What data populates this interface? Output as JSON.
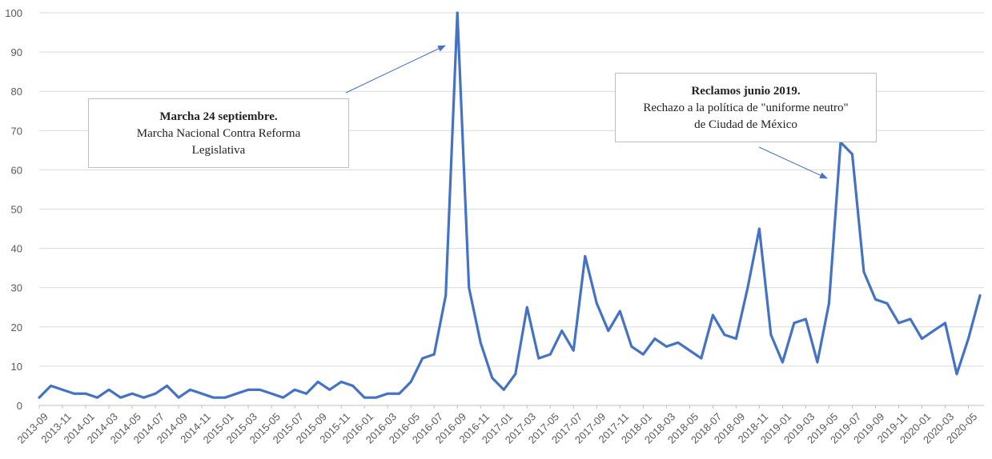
{
  "chart_data": {
    "type": "line",
    "title": "",
    "xlabel": "",
    "ylabel": "",
    "ylim": [
      0,
      100
    ],
    "yticks": [
      0,
      10,
      20,
      30,
      40,
      50,
      60,
      70,
      80,
      90,
      100
    ],
    "grid": true,
    "series_color": "#4472c4",
    "x": [
      "2013-09",
      "2013-10",
      "2013-11",
      "2013-12",
      "2014-01",
      "2014-02",
      "2014-03",
      "2014-04",
      "2014-05",
      "2014-06",
      "2014-07",
      "2014-08",
      "2014-09",
      "2014-10",
      "2014-11",
      "2014-12",
      "2015-01",
      "2015-02",
      "2015-03",
      "2015-04",
      "2015-05",
      "2015-06",
      "2015-07",
      "2015-08",
      "2015-09",
      "2015-10",
      "2015-11",
      "2015-12",
      "2016-01",
      "2016-02",
      "2016-03",
      "2016-04",
      "2016-05",
      "2016-06",
      "2016-07",
      "2016-08",
      "2016-09",
      "2016-10",
      "2016-11",
      "2016-12",
      "2017-01",
      "2017-02",
      "2017-03",
      "2017-04",
      "2017-05",
      "2017-06",
      "2017-07",
      "2017-08",
      "2017-09",
      "2017-10",
      "2017-11",
      "2017-12",
      "2018-01",
      "2018-02",
      "2018-03",
      "2018-04",
      "2018-05",
      "2018-06",
      "2018-07",
      "2018-08",
      "2018-09",
      "2018-10",
      "2018-11",
      "2018-12",
      "2019-01",
      "2019-02",
      "2019-03",
      "2019-04",
      "2019-05",
      "2019-06",
      "2019-07",
      "2019-08",
      "2019-09",
      "2019-10",
      "2019-11",
      "2019-12",
      "2020-01",
      "2020-02",
      "2020-03",
      "2020-04",
      "2020-05",
      "2020-06"
    ],
    "xtick_labels": [
      "2013-09",
      "2013-11",
      "2014-01",
      "2014-03",
      "2014-05",
      "2014-07",
      "2014-09",
      "2014-11",
      "2015-01",
      "2015-03",
      "2015-05",
      "2015-07",
      "2015-09",
      "2015-11",
      "2016-01",
      "2016-03",
      "2016-05",
      "2016-07",
      "2016-09",
      "2016-11",
      "2017-01",
      "2017-03",
      "2017-05",
      "2017-07",
      "2017-09",
      "2017-11",
      "2018-01",
      "2018-03",
      "2018-05",
      "2018-07",
      "2018-09",
      "2018-11",
      "2019-01",
      "2019-03",
      "2019-05",
      "2019-07",
      "2019-09",
      "2019-11",
      "2020-01",
      "2020-03",
      "2020-05"
    ],
    "series": [
      {
        "values": [
          2,
          5,
          4,
          3,
          3,
          2,
          4,
          2,
          3,
          2,
          3,
          5,
          2,
          4,
          3,
          2,
          2,
          3,
          4,
          4,
          3,
          2,
          4,
          3,
          6,
          4,
          6,
          5,
          2,
          2,
          3,
          3,
          6,
          12,
          13,
          28,
          100,
          30,
          16,
          7,
          4,
          8,
          25,
          12,
          13,
          19,
          14,
          38,
          26,
          19,
          24,
          15,
          13,
          17,
          15,
          16,
          14,
          12,
          23,
          18,
          17,
          30,
          45,
          18,
          11,
          21,
          22,
          11,
          26,
          67,
          64,
          34,
          27,
          26,
          21,
          22,
          17,
          19,
          21,
          8,
          17,
          28
        ]
      }
    ],
    "annotations": [
      {
        "title": "Marcha 24 septiembre.",
        "line1": "Marcha Nacional Contra Reforma",
        "line2": "Legislativa"
      },
      {
        "title": "Reclamos junio 2019.",
        "line1": "Rechazo a la política de \"uniforme neutro\"",
        "line2": "de Ciudad de México"
      }
    ]
  }
}
